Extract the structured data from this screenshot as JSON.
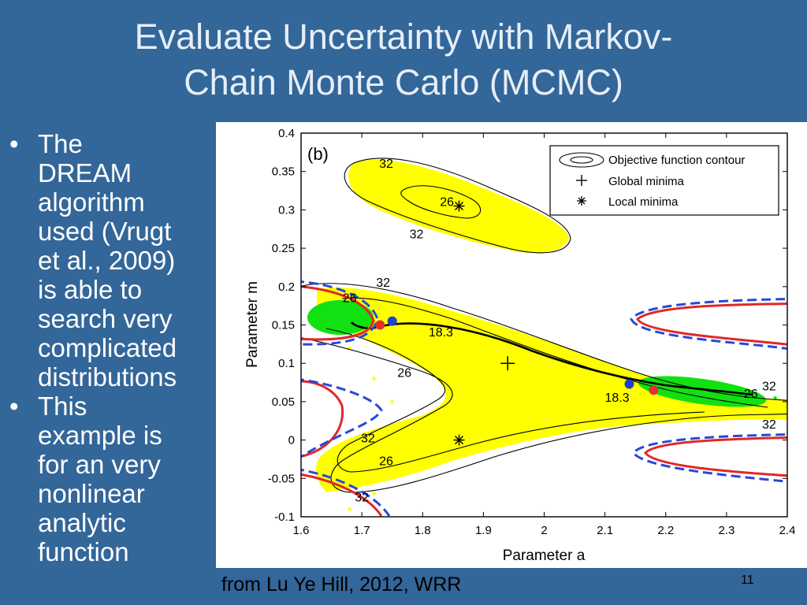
{
  "slide": {
    "title_line1": "Evaluate Uncertainty with Markov-",
    "title_line2": "Chain Monte Carlo (MCMC)",
    "bullets": [
      {
        "lines": [
          "The",
          "DREAM",
          "algorithm",
          "used (Vrugt",
          "et al., 2009)",
          "is able to",
          "search very",
          "complicated",
          "distributions"
        ]
      },
      {
        "lines": [
          "This",
          "example is",
          "for an very",
          "nonlinear",
          "analytic",
          "function"
        ]
      }
    ],
    "caption": "from Lu Ye Hill, 2012, WRR",
    "page_number": "11",
    "colors": {
      "background": "#336699",
      "title": "#e6eef8",
      "scatter_yellow": "#ffff00",
      "scatter_green": "#00ee00",
      "red": "#e03030",
      "blue": "#2040d0"
    }
  },
  "chart_data": {
    "type": "scatter",
    "panel_label": "(b)",
    "xlabel": "Parameter a",
    "ylabel": "Parameter m",
    "xlim": [
      1.6,
      2.4
    ],
    "ylim": [
      -0.1,
      0.4
    ],
    "xticks": [
      "1.6",
      "1.7",
      "1.8",
      "1.9",
      "2",
      "2.1",
      "2.2",
      "2.3",
      "2.4"
    ],
    "yticks": [
      "-0.1",
      "-0.05",
      "0",
      "0.05",
      "0.1",
      "0.15",
      "0.2",
      "0.25",
      "0.3",
      "0.35",
      "0.4"
    ],
    "legend": {
      "placement": "top-right",
      "entries": [
        "Objective function contour",
        "Global minima",
        "Local minima"
      ]
    },
    "contour_labels": [
      {
        "text": "32",
        "x": 1.74,
        "y": 0.355
      },
      {
        "text": "26",
        "x": 1.84,
        "y": 0.305
      },
      {
        "text": "32",
        "x": 1.79,
        "y": 0.263
      },
      {
        "text": "32",
        "x": 1.735,
        "y": 0.2
      },
      {
        "text": "26",
        "x": 1.68,
        "y": 0.18
      },
      {
        "text": "18.3",
        "x": 1.83,
        "y": 0.135
      },
      {
        "text": "26",
        "x": 1.77,
        "y": 0.082
      },
      {
        "text": "18.3",
        "x": 2.12,
        "y": 0.05
      },
      {
        "text": "32",
        "x": 2.37,
        "y": 0.065
      },
      {
        "text": "26",
        "x": 2.34,
        "y": 0.055
      },
      {
        "text": "32",
        "x": 2.37,
        "y": 0.015
      },
      {
        "text": "32",
        "x": 1.71,
        "y": -0.003
      },
      {
        "text": "26",
        "x": 1.74,
        "y": -0.033
      },
      {
        "text": "32",
        "x": 1.7,
        "y": -0.08
      }
    ],
    "global_minima": [
      {
        "x": 1.94,
        "y": 0.1
      }
    ],
    "local_minima": [
      {
        "x": 1.86,
        "y": 0.0
      },
      {
        "x": 1.86,
        "y": 0.305
      }
    ],
    "red_points": [
      {
        "x": 1.73,
        "y": 0.15
      },
      {
        "x": 2.18,
        "y": 0.065
      }
    ],
    "blue_points": [
      {
        "x": 1.75,
        "y": 0.155
      },
      {
        "x": 2.14,
        "y": 0.073
      }
    ],
    "series": [
      {
        "name": "",
        "color": "#ffff00",
        "points": [
          [
            1.62,
            0.16
          ],
          [
            1.65,
            0.14
          ],
          [
            1.68,
            0.12
          ],
          [
            1.72,
            0.08
          ],
          [
            1.75,
            0.05
          ],
          [
            1.78,
            0.02
          ],
          [
            1.8,
            -0.01
          ],
          [
            1.76,
            -0.04
          ],
          [
            1.72,
            -0.07
          ],
          [
            1.68,
            -0.09
          ],
          [
            1.85,
            0.0
          ],
          [
            1.9,
            0.01
          ],
          [
            1.95,
            0.02
          ],
          [
            2.0,
            0.03
          ],
          [
            2.05,
            0.04
          ],
          [
            2.1,
            0.05
          ],
          [
            2.2,
            0.06
          ],
          [
            2.3,
            0.05
          ],
          [
            1.9,
            0.1
          ],
          [
            2.0,
            0.09
          ],
          [
            2.1,
            0.08
          ],
          [
            1.8,
            0.12
          ],
          [
            1.85,
            0.31
          ],
          [
            1.8,
            0.32
          ],
          [
            1.9,
            0.29
          ],
          [
            1.77,
            0.34
          ],
          [
            1.95,
            0.27
          ]
        ]
      },
      {
        "name": "",
        "color": "#00ee00",
        "points": [
          [
            1.62,
            0.16
          ],
          [
            1.64,
            0.155
          ],
          [
            1.66,
            0.15
          ],
          [
            1.68,
            0.145
          ],
          [
            1.7,
            0.15
          ],
          [
            2.2,
            0.065
          ],
          [
            2.25,
            0.06
          ],
          [
            2.3,
            0.055
          ],
          [
            2.35,
            0.05
          ],
          [
            2.38,
            0.055
          ]
        ]
      }
    ]
  }
}
